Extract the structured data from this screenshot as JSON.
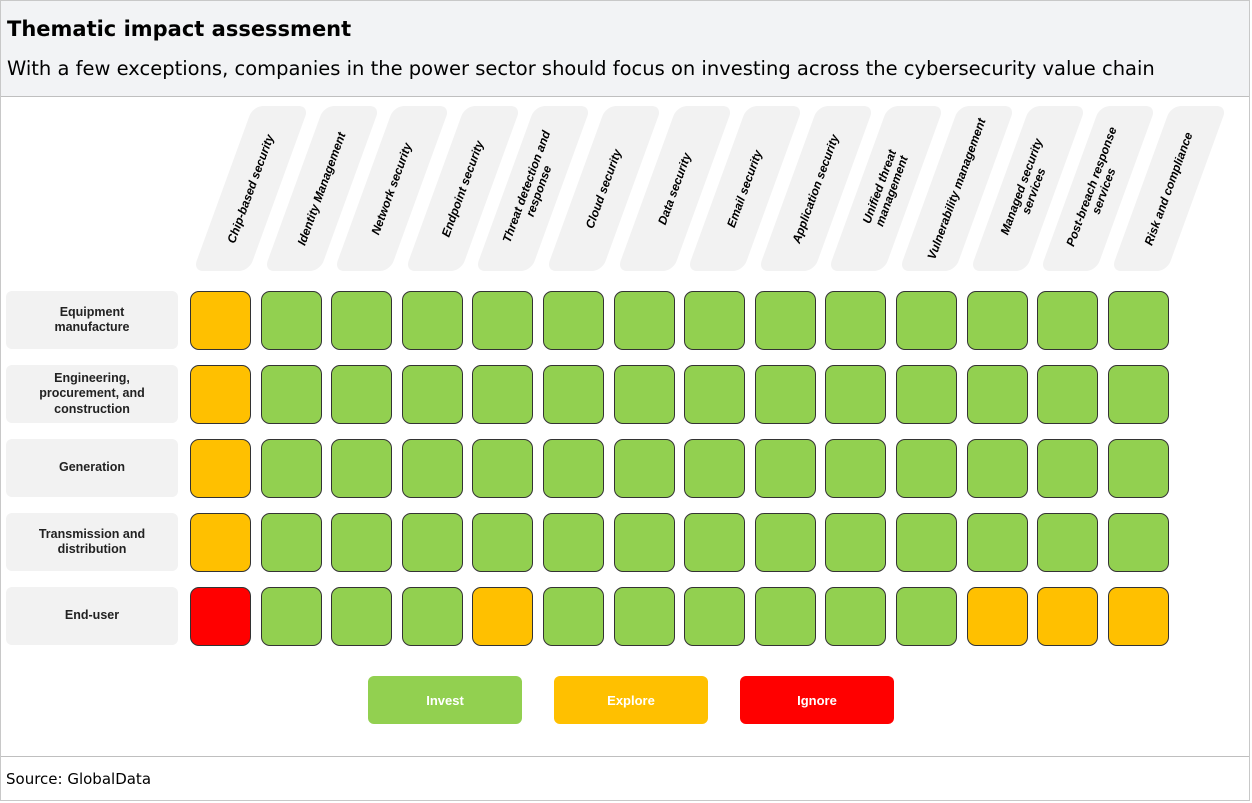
{
  "title": "Thematic impact assessment",
  "subtitle": "With a few exceptions, companies in the power sector should focus on investing across the cybersecurity value chain",
  "source": "Source: GlobalData",
  "colors": {
    "Invest": "#92d050",
    "Explore": "#ffc000",
    "Ignore": "#ff0000"
  },
  "legend": [
    {
      "label": "Invest",
      "color": "#92d050"
    },
    {
      "label": "Explore",
      "color": "#ffc000"
    },
    {
      "label": "Ignore",
      "color": "#ff0000"
    }
  ],
  "chart_data": {
    "type": "heatmap",
    "columns": [
      "Chip-based security",
      "Identity Management",
      "Network security",
      "Endpoint security",
      "Threat detection and response",
      "Cloud security",
      "Data security",
      "Email security",
      "Application security",
      "Unified threat management",
      "Vulnerability management",
      "Managed security services",
      "Post-breach response services",
      "Risk and compliance"
    ],
    "rows": [
      "Equipment manufacture",
      "Engineering, procurement, and construction",
      "Generation",
      "Transmission and distribution",
      "End-user"
    ],
    "values": [
      [
        "Explore",
        "Invest",
        "Invest",
        "Invest",
        "Invest",
        "Invest",
        "Invest",
        "Invest",
        "Invest",
        "Invest",
        "Invest",
        "Invest",
        "Invest",
        "Invest"
      ],
      [
        "Explore",
        "Invest",
        "Invest",
        "Invest",
        "Invest",
        "Invest",
        "Invest",
        "Invest",
        "Invest",
        "Invest",
        "Invest",
        "Invest",
        "Invest",
        "Invest"
      ],
      [
        "Explore",
        "Invest",
        "Invest",
        "Invest",
        "Invest",
        "Invest",
        "Invest",
        "Invest",
        "Invest",
        "Invest",
        "Invest",
        "Invest",
        "Invest",
        "Invest"
      ],
      [
        "Explore",
        "Invest",
        "Invest",
        "Invest",
        "Invest",
        "Invest",
        "Invest",
        "Invest",
        "Invest",
        "Invest",
        "Invest",
        "Invest",
        "Invest",
        "Invest"
      ],
      [
        "Ignore",
        "Invest",
        "Invest",
        "Invest",
        "Explore",
        "Invest",
        "Invest",
        "Invest",
        "Invest",
        "Invest",
        "Invest",
        "Explore",
        "Explore",
        "Explore"
      ]
    ]
  }
}
